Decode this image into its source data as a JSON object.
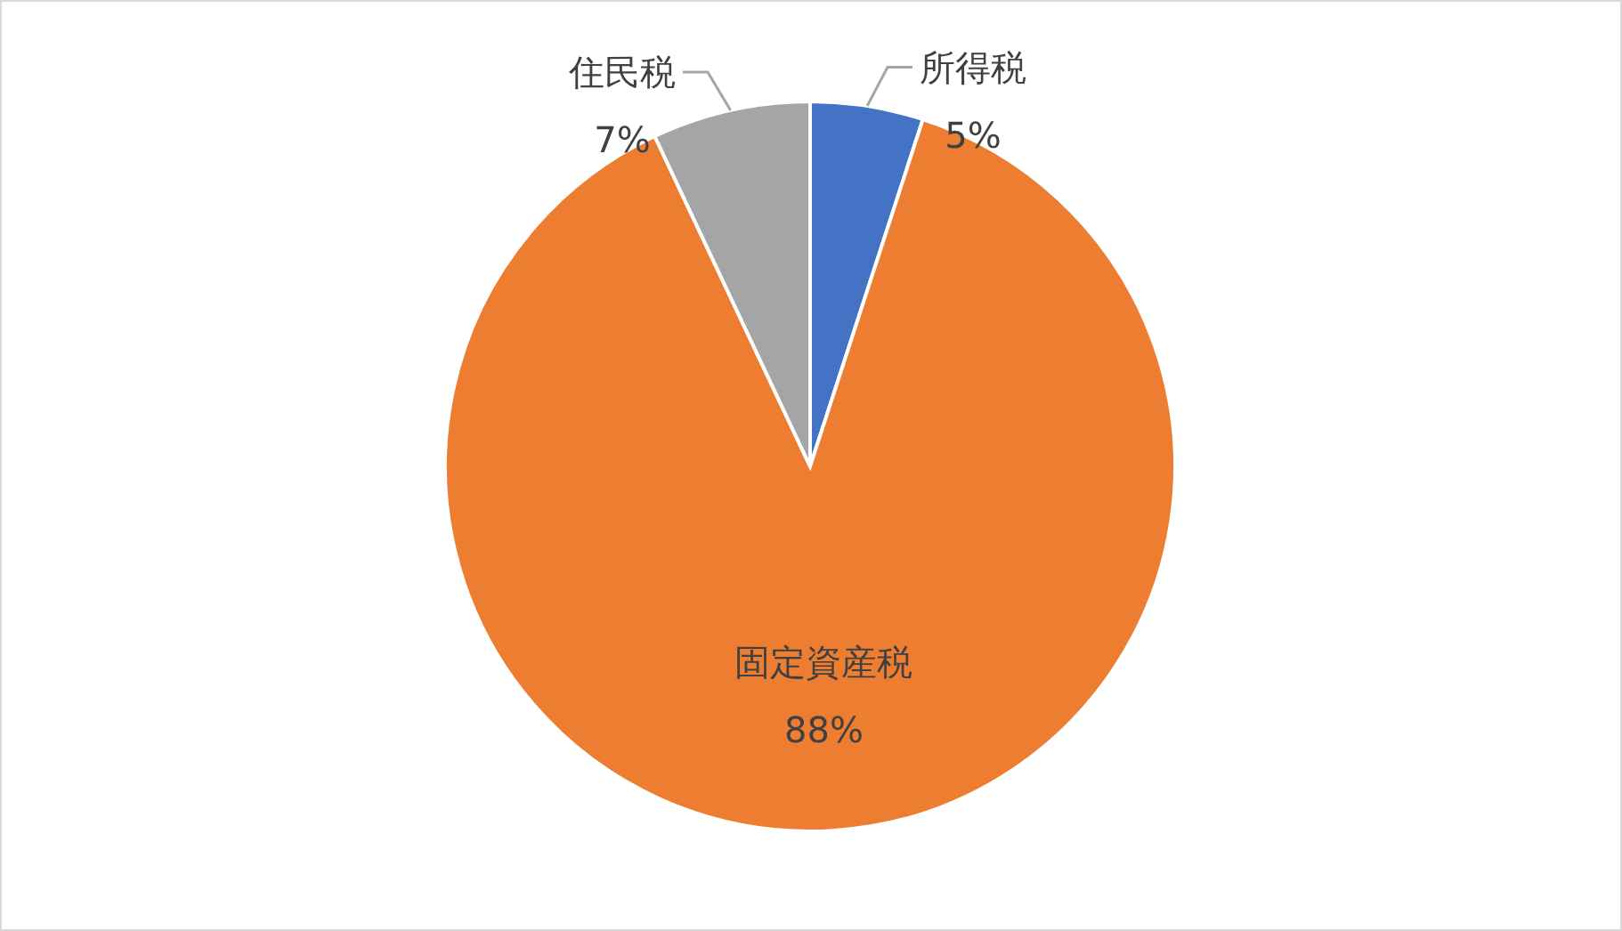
{
  "chart_data": {
    "type": "pie",
    "categories": [
      "所得税",
      "固定資産税",
      "住民税"
    ],
    "values": [
      5,
      88,
      7
    ],
    "value_labels": [
      "5%",
      "88%",
      "7%"
    ],
    "colors": [
      "#4472c4",
      "#ed7d31",
      "#a5a5a5"
    ]
  }
}
